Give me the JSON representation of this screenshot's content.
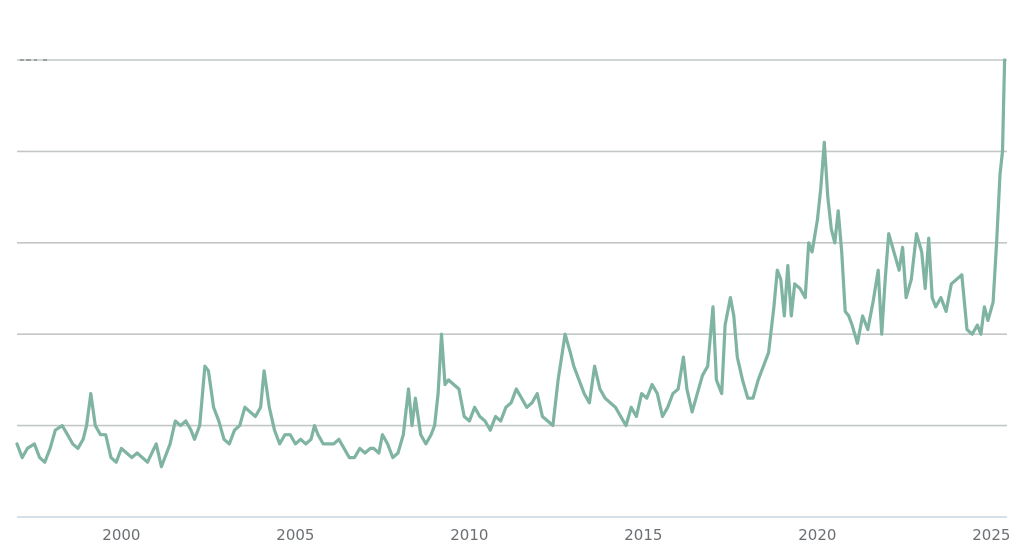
{
  "chart_data": {
    "type": "line",
    "title": "",
    "xlabel": "",
    "ylabel": "",
    "grid": true,
    "x_range": [
      1997.0,
      2025.45
    ],
    "y_range": [
      0,
      100
    ],
    "y_gridlines": [
      20,
      40,
      60,
      80,
      100
    ],
    "x_ticks": [
      {
        "value": 2000,
        "label": "2000"
      },
      {
        "value": 2005,
        "label": "2005"
      },
      {
        "value": 2010,
        "label": "2010"
      },
      {
        "value": 2015,
        "label": "2015"
      },
      {
        "value": 2020,
        "label": "2020"
      },
      {
        "value": 2025,
        "label": "2025"
      }
    ],
    "series": [
      {
        "color": "#7fb3a2",
        "points": [
          [
            1997.0,
            16
          ],
          [
            1997.15,
            13
          ],
          [
            1997.3,
            15
          ],
          [
            1997.5,
            16
          ],
          [
            1997.65,
            13
          ],
          [
            1997.8,
            12
          ],
          [
            1997.95,
            15
          ],
          [
            1998.1,
            19
          ],
          [
            1998.3,
            20
          ],
          [
            1998.45,
            18
          ],
          [
            1998.6,
            16
          ],
          [
            1998.75,
            15
          ],
          [
            1998.9,
            17
          ],
          [
            1999.0,
            20
          ],
          [
            1999.12,
            27
          ],
          [
            1999.25,
            20
          ],
          [
            1999.4,
            18
          ],
          [
            1999.55,
            18
          ],
          [
            1999.7,
            13
          ],
          [
            1999.85,
            12
          ],
          [
            2000.0,
            15
          ],
          [
            2000.15,
            14
          ],
          [
            2000.3,
            13
          ],
          [
            2000.45,
            14
          ],
          [
            2000.6,
            13
          ],
          [
            2000.75,
            12
          ],
          [
            2001.0,
            16
          ],
          [
            2001.15,
            11
          ],
          [
            2001.4,
            16
          ],
          [
            2001.55,
            21
          ],
          [
            2001.7,
            20
          ],
          [
            2001.85,
            21
          ],
          [
            2002.0,
            19
          ],
          [
            2002.1,
            17
          ],
          [
            2002.25,
            20
          ],
          [
            2002.4,
            33
          ],
          [
            2002.5,
            32
          ],
          [
            2002.65,
            24
          ],
          [
            2002.8,
            21
          ],
          [
            2002.95,
            17
          ],
          [
            2003.1,
            16
          ],
          [
            2003.25,
            19
          ],
          [
            2003.4,
            20
          ],
          [
            2003.55,
            24
          ],
          [
            2003.7,
            23
          ],
          [
            2003.85,
            22
          ],
          [
            2004.0,
            24
          ],
          [
            2004.1,
            32
          ],
          [
            2004.25,
            24
          ],
          [
            2004.4,
            19
          ],
          [
            2004.55,
            16
          ],
          [
            2004.7,
            18
          ],
          [
            2004.85,
            18
          ],
          [
            2005.0,
            16
          ],
          [
            2005.15,
            17
          ],
          [
            2005.3,
            16
          ],
          [
            2005.45,
            17
          ],
          [
            2005.55,
            20
          ],
          [
            2005.65,
            18
          ],
          [
            2005.8,
            16
          ],
          [
            2005.95,
            16
          ],
          [
            2006.1,
            16
          ],
          [
            2006.25,
            17
          ],
          [
            2006.4,
            15
          ],
          [
            2006.55,
            13
          ],
          [
            2006.7,
            13
          ],
          [
            2006.85,
            15
          ],
          [
            2007.0,
            14
          ],
          [
            2007.15,
            15
          ],
          [
            2007.25,
            15
          ],
          [
            2007.4,
            14
          ],
          [
            2007.5,
            18
          ],
          [
            2007.65,
            16
          ],
          [
            2007.8,
            13
          ],
          [
            2007.95,
            14
          ],
          [
            2008.1,
            18
          ],
          [
            2008.25,
            28
          ],
          [
            2008.35,
            20
          ],
          [
            2008.45,
            26
          ],
          [
            2008.6,
            18
          ],
          [
            2008.75,
            16
          ],
          [
            2008.9,
            18
          ],
          [
            2009.0,
            20
          ],
          [
            2009.1,
            27
          ],
          [
            2009.2,
            40
          ],
          [
            2009.3,
            29
          ],
          [
            2009.4,
            30
          ],
          [
            2009.55,
            29
          ],
          [
            2009.7,
            28
          ],
          [
            2009.85,
            22
          ],
          [
            2010.0,
            21
          ],
          [
            2010.15,
            24
          ],
          [
            2010.3,
            22
          ],
          [
            2010.45,
            21
          ],
          [
            2010.6,
            19
          ],
          [
            2010.75,
            22
          ],
          [
            2010.9,
            21
          ],
          [
            2011.05,
            24
          ],
          [
            2011.2,
            25
          ],
          [
            2011.35,
            28
          ],
          [
            2011.5,
            26
          ],
          [
            2011.65,
            24
          ],
          [
            2011.8,
            25
          ],
          [
            2011.95,
            27
          ],
          [
            2012.1,
            22
          ],
          [
            2012.25,
            21
          ],
          [
            2012.4,
            20
          ],
          [
            2012.55,
            30
          ],
          [
            2012.65,
            35
          ],
          [
            2012.75,
            40
          ],
          [
            2012.9,
            36
          ],
          [
            2013.0,
            33
          ],
          [
            2013.15,
            30
          ],
          [
            2013.3,
            27
          ],
          [
            2013.45,
            25
          ],
          [
            2013.6,
            33
          ],
          [
            2013.75,
            28
          ],
          [
            2013.9,
            26
          ],
          [
            2014.05,
            25
          ],
          [
            2014.2,
            24
          ],
          [
            2014.35,
            22
          ],
          [
            2014.5,
            20
          ],
          [
            2014.65,
            24
          ],
          [
            2014.8,
            22
          ],
          [
            2014.95,
            27
          ],
          [
            2015.1,
            26
          ],
          [
            2015.25,
            29
          ],
          [
            2015.4,
            27
          ],
          [
            2015.55,
            22
          ],
          [
            2015.7,
            24
          ],
          [
            2015.85,
            27
          ],
          [
            2016.0,
            28
          ],
          [
            2016.15,
            35
          ],
          [
            2016.25,
            28
          ],
          [
            2016.4,
            23
          ],
          [
            2016.55,
            27
          ],
          [
            2016.7,
            31
          ],
          [
            2016.85,
            33
          ],
          [
            2017.0,
            46
          ],
          [
            2017.1,
            30
          ],
          [
            2017.25,
            27
          ],
          [
            2017.35,
            42
          ],
          [
            2017.5,
            48
          ],
          [
            2017.6,
            44
          ],
          [
            2017.7,
            35
          ],
          [
            2017.85,
            30
          ],
          [
            2018.0,
            26
          ],
          [
            2018.15,
            26
          ],
          [
            2018.3,
            30
          ],
          [
            2018.45,
            33
          ],
          [
            2018.6,
            36
          ],
          [
            2018.75,
            46
          ],
          [
            2018.85,
            54
          ],
          [
            2018.95,
            52
          ],
          [
            2019.05,
            44
          ],
          [
            2019.15,
            55
          ],
          [
            2019.25,
            44
          ],
          [
            2019.35,
            51
          ],
          [
            2019.5,
            50
          ],
          [
            2019.65,
            48
          ],
          [
            2019.75,
            60
          ],
          [
            2019.85,
            58
          ],
          [
            2020.0,
            65
          ],
          [
            2020.1,
            72
          ],
          [
            2020.2,
            82
          ],
          [
            2020.3,
            70
          ],
          [
            2020.4,
            63
          ],
          [
            2020.5,
            60
          ],
          [
            2020.6,
            67
          ],
          [
            2020.7,
            58
          ],
          [
            2020.8,
            45
          ],
          [
            2020.9,
            44
          ],
          [
            2021.0,
            42
          ],
          [
            2021.15,
            38
          ],
          [
            2021.3,
            44
          ],
          [
            2021.45,
            41
          ],
          [
            2021.6,
            47
          ],
          [
            2021.75,
            54
          ],
          [
            2021.85,
            40
          ],
          [
            2021.95,
            52
          ],
          [
            2022.05,
            62
          ],
          [
            2022.2,
            58
          ],
          [
            2022.35,
            54
          ],
          [
            2022.45,
            59
          ],
          [
            2022.55,
            48
          ],
          [
            2022.7,
            52
          ],
          [
            2022.85,
            62
          ],
          [
            2023.0,
            58
          ],
          [
            2023.1,
            50
          ],
          [
            2023.2,
            61
          ],
          [
            2023.3,
            48
          ],
          [
            2023.4,
            46
          ],
          [
            2023.55,
            48
          ],
          [
            2023.7,
            45
          ],
          [
            2023.85,
            51
          ],
          [
            2024.0,
            52
          ],
          [
            2024.15,
            53
          ],
          [
            2024.3,
            41
          ],
          [
            2024.45,
            40
          ],
          [
            2024.6,
            42
          ],
          [
            2024.7,
            40
          ],
          [
            2024.8,
            46
          ],
          [
            2024.9,
            43
          ],
          [
            2025.05,
            47
          ],
          [
            2025.15,
            60
          ],
          [
            2025.25,
            75
          ],
          [
            2025.32,
            80
          ],
          [
            2025.38,
            100
          ]
        ]
      }
    ]
  }
}
